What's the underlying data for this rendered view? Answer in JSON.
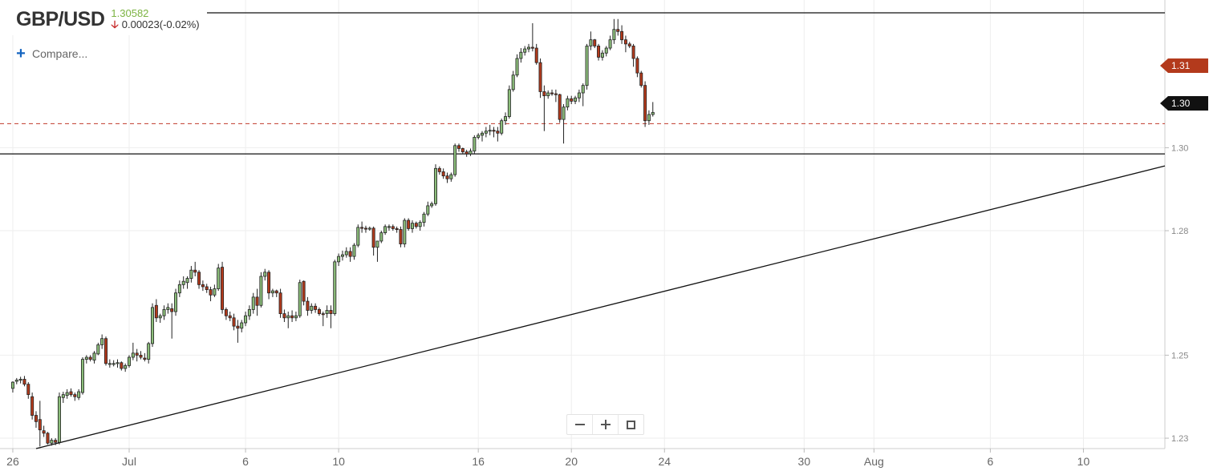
{
  "header": {
    "symbol": "GBP/USD",
    "price": "1.30582",
    "change": "0.00023(-0.02%)",
    "direction_icon": "down-arrow-icon",
    "compare_label": "Compare..."
  },
  "price_tags": {
    "current": "1.31",
    "level": "1.30"
  },
  "colors": {
    "bull_fill": "#8bbd7a",
    "bear_fill": "#b33a1c",
    "current_line": "#c0392b",
    "accent": "#1565c0"
  },
  "chart_data": {
    "type": "candlestick",
    "title": "",
    "ylim": [
      1.2275,
      1.3325
    ],
    "yticks": [
      {
        "value": 1.23,
        "label": "1.23"
      },
      {
        "value": 1.25,
        "label": "1.25"
      },
      {
        "value": 1.28,
        "label": "1.28"
      },
      {
        "value": 1.3,
        "label": "1.30"
      }
    ],
    "xticks": [
      {
        "day": 0,
        "label": "26"
      },
      {
        "day": 5,
        "label": "Jul"
      },
      {
        "day": 10,
        "label": "6"
      },
      {
        "day": 14,
        "label": "10"
      },
      {
        "day": 20,
        "label": "16"
      },
      {
        "day": 24,
        "label": "20"
      },
      {
        "day": 28,
        "label": "24"
      },
      {
        "day": 34,
        "label": "30"
      },
      {
        "day": 37,
        "label": "Aug"
      },
      {
        "day": 42,
        "label": "6"
      },
      {
        "day": 46,
        "label": "10"
      }
    ],
    "x_range_days": [
      -0.55,
      49.5
    ],
    "horizontal_lines": [
      {
        "name": "resistance",
        "value": 1.3325
      },
      {
        "name": "support",
        "value": 1.2985
      },
      {
        "name": "current",
        "value": 1.3058,
        "dashed": true
      }
    ],
    "trendline": {
      "from": {
        "day": 1.0,
        "value": 1.2275
      },
      "to": {
        "day": 49.5,
        "value": 1.2956
      }
    },
    "candles_per_day": 6,
    "candles": [
      [
        1.242,
        1.2437,
        1.241,
        1.2435
      ],
      [
        1.2437,
        1.2445,
        1.243,
        1.244
      ],
      [
        1.244,
        1.2448,
        1.2432,
        1.2442
      ],
      [
        1.2442,
        1.245,
        1.2425,
        1.243
      ],
      [
        1.243,
        1.2435,
        1.2395,
        1.2405
      ],
      [
        1.24,
        1.241,
        1.2345,
        1.2355
      ],
      [
        1.2355,
        1.2365,
        1.2325,
        1.234
      ],
      [
        1.2345,
        1.239,
        1.228,
        1.232
      ],
      [
        1.2318,
        1.233,
        1.2303,
        1.2312
      ],
      [
        1.2312,
        1.2315,
        1.2285,
        1.2288
      ],
      [
        1.2288,
        1.23,
        1.2282,
        1.2295
      ],
      [
        1.2295,
        1.23,
        1.2283,
        1.229
      ],
      [
        1.229,
        1.241,
        1.2285,
        1.24
      ],
      [
        1.2398,
        1.2412,
        1.2385,
        1.2405
      ],
      [
        1.2403,
        1.2418,
        1.2395,
        1.241
      ],
      [
        1.2412,
        1.242,
        1.24,
        1.2405
      ],
      [
        1.2405,
        1.241,
        1.239,
        1.24
      ],
      [
        1.2398,
        1.2418,
        1.2392,
        1.2412
      ],
      [
        1.241,
        1.2495,
        1.2405,
        1.249
      ],
      [
        1.249,
        1.25,
        1.248,
        1.2495
      ],
      [
        1.2495,
        1.25,
        1.2485,
        1.249
      ],
      [
        1.2488,
        1.251,
        1.248,
        1.2505
      ],
      [
        1.2503,
        1.253,
        1.25,
        1.2525
      ],
      [
        1.2525,
        1.255,
        1.2515,
        1.254
      ],
      [
        1.254,
        1.2545,
        1.2475,
        1.248
      ],
      [
        1.248,
        1.249,
        1.247,
        1.248
      ],
      [
        1.248,
        1.2488,
        1.2473,
        1.248
      ],
      [
        1.248,
        1.249,
        1.247,
        1.2482
      ],
      [
        1.2482,
        1.2485,
        1.2463,
        1.2468
      ],
      [
        1.2468,
        1.248,
        1.246,
        1.2475
      ],
      [
        1.2475,
        1.25,
        1.247,
        1.2495
      ],
      [
        1.2495,
        1.253,
        1.2488,
        1.2505
      ],
      [
        1.2505,
        1.2515,
        1.2485,
        1.25
      ],
      [
        1.25,
        1.251,
        1.249,
        1.2495
      ],
      [
        1.2493,
        1.2505,
        1.2485,
        1.249
      ],
      [
        1.249,
        1.2532,
        1.248,
        1.2528
      ],
      [
        1.2528,
        1.2625,
        1.252,
        1.2615
      ],
      [
        1.262,
        1.2635,
        1.258,
        1.259
      ],
      [
        1.259,
        1.26,
        1.2578,
        1.2595
      ],
      [
        1.2595,
        1.262,
        1.2585,
        1.261
      ],
      [
        1.261,
        1.2625,
        1.26,
        1.2615
      ],
      [
        1.2612,
        1.2625,
        1.254,
        1.2605
      ],
      [
        1.2605,
        1.266,
        1.2595,
        1.265
      ],
      [
        1.265,
        1.268,
        1.264,
        1.267
      ],
      [
        1.267,
        1.269,
        1.266,
        1.2678
      ],
      [
        1.2675,
        1.269,
        1.266,
        1.2685
      ],
      [
        1.2685,
        1.2715,
        1.2675,
        1.2705
      ],
      [
        1.2705,
        1.2725,
        1.269,
        1.27
      ],
      [
        1.27,
        1.2705,
        1.266,
        1.267
      ],
      [
        1.267,
        1.268,
        1.2655,
        1.2665
      ],
      [
        1.2665,
        1.2672,
        1.265,
        1.2658
      ],
      [
        1.2658,
        1.2665,
        1.263,
        1.2645
      ],
      [
        1.2645,
        1.267,
        1.264,
        1.266
      ],
      [
        1.266,
        1.272,
        1.2655,
        1.271
      ],
      [
        1.2712,
        1.2725,
        1.26,
        1.261
      ],
      [
        1.261,
        1.2615,
        1.2585,
        1.2595
      ],
      [
        1.2595,
        1.2605,
        1.2582,
        1.259
      ],
      [
        1.259,
        1.26,
        1.256,
        1.257
      ],
      [
        1.257,
        1.2585,
        1.253,
        1.2565
      ],
      [
        1.2565,
        1.2585,
        1.2555,
        1.2578
      ],
      [
        1.2578,
        1.2605,
        1.257,
        1.2595
      ],
      [
        1.2595,
        1.262,
        1.2585,
        1.261
      ],
      [
        1.261,
        1.265,
        1.26,
        1.264
      ],
      [
        1.264,
        1.266,
        1.2595,
        1.262
      ],
      [
        1.262,
        1.27,
        1.2615,
        1.269
      ],
      [
        1.269,
        1.2708,
        1.268,
        1.27
      ],
      [
        1.27,
        1.2705,
        1.2635,
        1.265
      ],
      [
        1.265,
        1.266,
        1.264,
        1.2655
      ],
      [
        1.2655,
        1.2658,
        1.264,
        1.265
      ],
      [
        1.265,
        1.266,
        1.259,
        1.26
      ],
      [
        1.26,
        1.261,
        1.258,
        1.259
      ],
      [
        1.259,
        1.2605,
        1.2565,
        1.2595
      ],
      [
        1.2595,
        1.2608,
        1.258,
        1.259
      ],
      [
        1.259,
        1.2605,
        1.2582,
        1.2595
      ],
      [
        1.2595,
        1.2682,
        1.259,
        1.2675
      ],
      [
        1.2678,
        1.268,
        1.262,
        1.263
      ],
      [
        1.263,
        1.264,
        1.2595,
        1.2608
      ],
      [
        1.2608,
        1.2625,
        1.26,
        1.2618
      ],
      [
        1.2618,
        1.2625,
        1.2602,
        1.261
      ],
      [
        1.261,
        1.2615,
        1.2595,
        1.26
      ],
      [
        1.26,
        1.2605,
        1.257,
        1.2598
      ],
      [
        1.26,
        1.262,
        1.259,
        1.2608
      ],
      [
        1.2608,
        1.262,
        1.2565,
        1.26
      ],
      [
        1.26,
        1.273,
        1.2595,
        1.2725
      ],
      [
        1.2725,
        1.2745,
        1.2715,
        1.2738
      ],
      [
        1.2738,
        1.2752,
        1.2728,
        1.2742
      ],
      [
        1.2742,
        1.276,
        1.2735,
        1.275
      ],
      [
        1.275,
        1.276,
        1.2725,
        1.2738
      ],
      [
        1.2738,
        1.277,
        1.273,
        1.2765
      ],
      [
        1.2765,
        1.2815,
        1.276,
        1.2808
      ],
      [
        1.2808,
        1.2822,
        1.2795,
        1.2806
      ],
      [
        1.2806,
        1.2812,
        1.2795,
        1.2804
      ],
      [
        1.2804,
        1.281,
        1.28,
        1.2806
      ],
      [
        1.2806,
        1.281,
        1.274,
        1.276
      ],
      [
        1.276,
        1.277,
        1.2725,
        1.2775
      ],
      [
        1.2775,
        1.28,
        1.277,
        1.2795
      ],
      [
        1.2795,
        1.2815,
        1.279,
        1.281
      ],
      [
        1.281,
        1.2815,
        1.28,
        1.281
      ],
      [
        1.281,
        1.2815,
        1.28,
        1.2805
      ],
      [
        1.2805,
        1.281,
        1.2795,
        1.2803
      ],
      [
        1.2803,
        1.281,
        1.276,
        1.2768
      ],
      [
        1.2768,
        1.283,
        1.276,
        1.2825
      ],
      [
        1.2825,
        1.283,
        1.28,
        1.2805
      ],
      [
        1.2805,
        1.2825,
        1.2795,
        1.2818
      ],
      [
        1.2818,
        1.2822,
        1.2805,
        1.281
      ],
      [
        1.281,
        1.2825,
        1.28,
        1.282
      ],
      [
        1.282,
        1.2845,
        1.281,
        1.284
      ],
      [
        1.284,
        1.287,
        1.2835,
        1.286
      ],
      [
        1.286,
        1.287,
        1.2855,
        1.2865
      ],
      [
        1.2865,
        1.296,
        1.286,
        1.295
      ],
      [
        1.295,
        1.2955,
        1.2935,
        1.2942
      ],
      [
        1.2942,
        1.295,
        1.2925,
        1.2932
      ],
      [
        1.2932,
        1.294,
        1.2915,
        1.2925
      ],
      [
        1.2925,
        1.294,
        1.2918,
        1.2935
      ],
      [
        1.2935,
        1.301,
        1.293,
        1.3005
      ],
      [
        1.3005,
        1.301,
        1.299,
        1.2998
      ],
      [
        1.2998,
        1.3,
        1.2985,
        1.299
      ],
      [
        1.299,
        1.2995,
        1.2978,
        1.2985
      ],
      [
        1.2985,
        1.2998,
        1.298,
        1.2992
      ],
      [
        1.2992,
        1.303,
        1.2985,
        1.3025
      ],
      [
        1.3025,
        1.3035,
        1.302,
        1.303
      ],
      [
        1.303,
        1.304,
        1.3015,
        1.3035
      ],
      [
        1.3035,
        1.305,
        1.3025,
        1.304
      ],
      [
        1.304,
        1.3055,
        1.303,
        1.3042
      ],
      [
        1.3042,
        1.305,
        1.3025,
        1.304
      ],
      [
        1.304,
        1.305,
        1.3015,
        1.3035
      ],
      [
        1.3035,
        1.307,
        1.303,
        1.3065
      ],
      [
        1.3065,
        1.3085,
        1.3055,
        1.3075
      ],
      [
        1.3075,
        1.315,
        1.307,
        1.314
      ],
      [
        1.314,
        1.3185,
        1.3135,
        1.3175
      ],
      [
        1.3175,
        1.3225,
        1.317,
        1.3215
      ],
      [
        1.3215,
        1.324,
        1.3205,
        1.323
      ],
      [
        1.323,
        1.3245,
        1.3222,
        1.3238
      ],
      [
        1.3238,
        1.325,
        1.323,
        1.3242
      ],
      [
        1.3242,
        1.33,
        1.3232,
        1.324
      ],
      [
        1.324,
        1.325,
        1.32,
        1.3205
      ],
      [
        1.3205,
        1.3215,
        1.312,
        1.3135
      ],
      [
        1.3135,
        1.315,
        1.304,
        1.3125
      ],
      [
        1.3125,
        1.3138,
        1.3118,
        1.3132
      ],
      [
        1.3132,
        1.314,
        1.3125,
        1.313
      ],
      [
        1.313,
        1.314,
        1.311,
        1.3128
      ],
      [
        1.3128,
        1.313,
        1.306,
        1.3068
      ],
      [
        1.3068,
        1.3105,
        1.301,
        1.3098
      ],
      [
        1.3098,
        1.3125,
        1.309,
        1.3118
      ],
      [
        1.3118,
        1.3125,
        1.3105,
        1.3112
      ],
      [
        1.3112,
        1.3125,
        1.3105,
        1.312
      ],
      [
        1.312,
        1.314,
        1.311,
        1.3132
      ],
      [
        1.3132,
        1.3155,
        1.31,
        1.315
      ],
      [
        1.315,
        1.325,
        1.314,
        1.3245
      ],
      [
        1.3245,
        1.328,
        1.3235,
        1.326
      ],
      [
        1.326,
        1.3262,
        1.324,
        1.3245
      ],
      [
        1.3245,
        1.325,
        1.321,
        1.3218
      ],
      [
        1.3218,
        1.3235,
        1.321,
        1.3228
      ],
      [
        1.3228,
        1.3245,
        1.322,
        1.324
      ],
      [
        1.324,
        1.327,
        1.3235,
        1.326
      ],
      [
        1.326,
        1.331,
        1.325,
        1.3285
      ],
      [
        1.3285,
        1.331,
        1.327,
        1.328
      ],
      [
        1.328,
        1.3295,
        1.325,
        1.326
      ],
      [
        1.326,
        1.327,
        1.323,
        1.325
      ],
      [
        1.325,
        1.3255,
        1.324,
        1.3245
      ],
      [
        1.3245,
        1.325,
        1.3195,
        1.3215
      ],
      [
        1.3215,
        1.322,
        1.317,
        1.318
      ],
      [
        1.318,
        1.3185,
        1.3145,
        1.315
      ],
      [
        1.315,
        1.316,
        1.305,
        1.3065
      ],
      [
        1.3065,
        1.309,
        1.3055,
        1.308
      ],
      [
        1.308,
        1.311,
        1.3075,
        1.3085
      ]
    ]
  }
}
